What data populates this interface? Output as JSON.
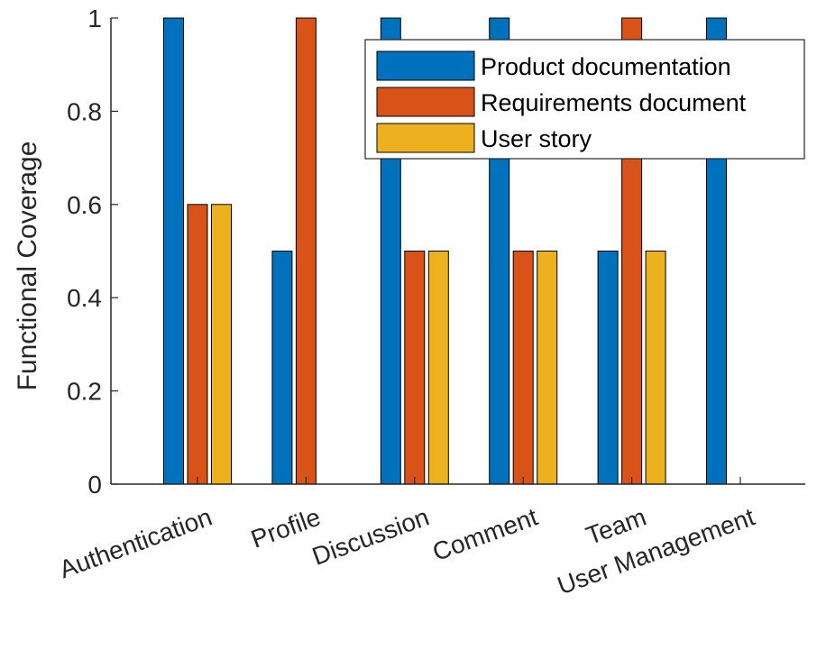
{
  "chart_data": {
    "type": "bar",
    "title": "",
    "xlabel": "",
    "ylabel": "Functional Coverage",
    "ylim": [
      0,
      1
    ],
    "yticks": [
      0,
      0.2,
      0.4,
      0.6,
      0.8,
      1
    ],
    "ytick_labels": [
      "0",
      "0.2",
      "0.4",
      "0.6",
      "0.8",
      "1"
    ],
    "categories": [
      "Authentication",
      "Profile",
      "Discussion",
      "Comment",
      "Team",
      "User Management"
    ],
    "series": [
      {
        "name": "Product documentation",
        "color": "#0072BD",
        "values": [
          1,
          0.5,
          1,
          1,
          0.5,
          1
        ]
      },
      {
        "name": "Requirements document",
        "color": "#D95319",
        "values": [
          0.6,
          1,
          0.5,
          0.5,
          1,
          0
        ]
      },
      {
        "name": "User story",
        "color": "#EDB120",
        "values": [
          0.6,
          0,
          0.5,
          0.5,
          0.5,
          0
        ]
      }
    ],
    "legend": {
      "position": "top-right"
    },
    "grid": false
  }
}
